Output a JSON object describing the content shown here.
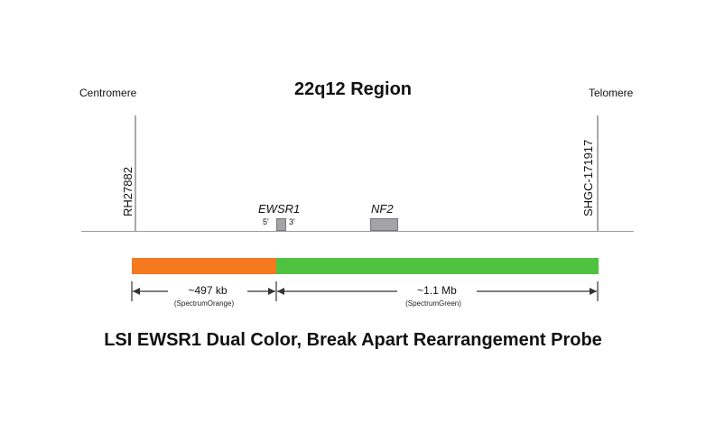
{
  "title": "22q12 Region",
  "ends": {
    "left": "Centromere",
    "right": "Telomere"
  },
  "markers": {
    "left": "RH27882",
    "right": "SHGC-171917"
  },
  "genes": {
    "ewsr1": {
      "name": "EWSR1",
      "five_prime": "5'",
      "three_prime": "3'"
    },
    "nf2": {
      "name": "NF2"
    }
  },
  "probes": {
    "orange": {
      "size": "~497 kb",
      "label": "(SpectrumOrange)",
      "color": "#f4791f"
    },
    "green": {
      "size": "~1.1 Mb",
      "label": "(SpectrumGreen)",
      "color": "#4fc23f"
    }
  },
  "caption": "LSI EWSR1 Dual Color, Break Apart Rearrangement Probe"
}
